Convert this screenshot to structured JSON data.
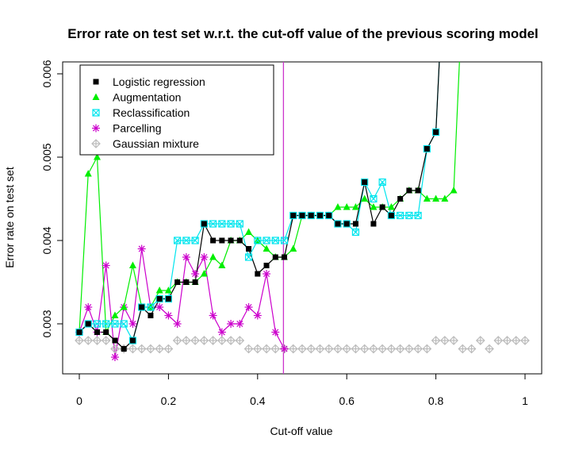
{
  "chart_data": {
    "type": "line",
    "title": "Error rate on test set w.r.t. the cut-off value of the previous scoring model",
    "xlabel": "Cut-off value",
    "ylabel": "Error rate on test set",
    "xlim": [
      0,
      1
    ],
    "ylim": [
      0.00265,
      0.00618
    ],
    "xticks": [
      0,
      0.2,
      0.4,
      0.6,
      0.8,
      1
    ],
    "xtick_labels": [
      "0",
      "0.2",
      "0.4",
      "0.6",
      "0.8",
      "1"
    ],
    "yticks": [
      0.003,
      0.004,
      0.005,
      0.006
    ],
    "ytick_labels": [
      "0.003",
      "0.004",
      "0.005",
      "0.006"
    ],
    "grid": false,
    "legend_position": "top-left",
    "vline": {
      "x": 0.458,
      "color": "#cc33cc"
    },
    "series": [
      {
        "name": "Logistic regression",
        "color": "#000000",
        "marker": "square",
        "x": [
          0,
          0.02,
          0.04,
          0.06,
          0.08,
          0.1,
          0.12,
          0.14,
          0.16,
          0.18,
          0.2,
          0.22,
          0.24,
          0.26,
          0.28,
          0.3,
          0.32,
          0.34,
          0.36,
          0.38,
          0.4,
          0.42,
          0.44,
          0.46,
          0.48,
          0.5,
          0.52,
          0.54,
          0.56,
          0.58,
          0.6,
          0.62,
          0.64,
          0.66,
          0.68,
          0.7,
          0.72,
          0.74,
          0.76,
          0.78,
          0.8,
          0.82
        ],
        "y": [
          0.0029,
          0.003,
          0.0029,
          0.0029,
          0.0028,
          0.0027,
          0.0028,
          0.0032,
          0.0031,
          0.0033,
          0.0033,
          0.0035,
          0.0035,
          0.0035,
          0.0042,
          0.004,
          0.004,
          0.004,
          0.004,
          0.0039,
          0.0036,
          0.0037,
          0.0038,
          0.0038,
          0.0043,
          0.0043,
          0.0043,
          0.0043,
          0.0043,
          0.0042,
          0.0042,
          0.0042,
          0.0047,
          0.0042,
          0.0044,
          0.0043,
          0.0045,
          0.0046,
          0.0046,
          0.0051,
          0.0053,
          0.0075
        ]
      },
      {
        "name": "Augmentation",
        "color": "#00ee00",
        "marker": "triangle",
        "x": [
          0,
          0.02,
          0.04,
          0.06,
          0.08,
          0.1,
          0.12,
          0.14,
          0.16,
          0.18,
          0.2,
          0.22,
          0.24,
          0.26,
          0.28,
          0.3,
          0.32,
          0.34,
          0.36,
          0.38,
          0.4,
          0.42,
          0.44,
          0.46,
          0.48,
          0.5,
          0.52,
          0.54,
          0.56,
          0.58,
          0.6,
          0.62,
          0.64,
          0.66,
          0.68,
          0.7,
          0.72,
          0.74,
          0.76,
          0.78,
          0.8,
          0.82,
          0.84,
          0.86
        ],
        "y": [
          0.0029,
          0.0048,
          0.005,
          0.0029,
          0.0031,
          0.0032,
          0.0037,
          0.0032,
          0.0032,
          0.0034,
          0.0034,
          0.0035,
          0.0035,
          0.0035,
          0.0036,
          0.0038,
          0.0037,
          0.004,
          0.004,
          0.0041,
          0.004,
          0.0039,
          0.0038,
          0.0038,
          0.0039,
          0.0043,
          0.0043,
          0.0043,
          0.0043,
          0.0044,
          0.0044,
          0.0044,
          0.0045,
          0.0044,
          0.0044,
          0.0044,
          0.0045,
          0.0046,
          0.0046,
          0.0045,
          0.0045,
          0.0045,
          0.0046,
          0.007
        ]
      },
      {
        "name": "Reclassification",
        "color": "#00e5ee",
        "marker": "square-x",
        "x": [
          0,
          0.02,
          0.04,
          0.06,
          0.08,
          0.1,
          0.12,
          0.14,
          0.16,
          0.18,
          0.2,
          0.22,
          0.24,
          0.26,
          0.28,
          0.3,
          0.32,
          0.34,
          0.36,
          0.38,
          0.4,
          0.42,
          0.44,
          0.46,
          0.48,
          0.5,
          0.52,
          0.54,
          0.56,
          0.58,
          0.6,
          0.62,
          0.64,
          0.66,
          0.68,
          0.7,
          0.72,
          0.74,
          0.76,
          0.78,
          0.8,
          0.82
        ],
        "y": [
          0.0029,
          0.003,
          0.003,
          0.003,
          0.003,
          0.003,
          0.0028,
          0.0032,
          0.0032,
          0.0033,
          0.0033,
          0.004,
          0.004,
          0.004,
          0.0042,
          0.0042,
          0.0042,
          0.0042,
          0.0042,
          0.0038,
          0.004,
          0.004,
          0.004,
          0.004,
          0.0043,
          0.0043,
          0.0043,
          0.0043,
          0.0043,
          0.0042,
          0.0042,
          0.0041,
          0.0047,
          0.0045,
          0.0047,
          0.0043,
          0.0043,
          0.0043,
          0.0043,
          0.0051,
          0.0053,
          0.0075
        ]
      },
      {
        "name": "Parcelling",
        "color": "#cc00cc",
        "marker": "asterisk",
        "x": [
          0,
          0.02,
          0.04,
          0.06,
          0.08,
          0.1,
          0.12,
          0.14,
          0.16,
          0.18,
          0.2,
          0.22,
          0.24,
          0.26,
          0.28,
          0.3,
          0.32,
          0.34,
          0.36,
          0.38,
          0.4,
          0.42,
          0.44,
          0.46
        ],
        "y": [
          0.0029,
          0.0032,
          0.0029,
          0.0037,
          0.0026,
          0.0032,
          0.003,
          0.0039,
          0.0032,
          0.0032,
          0.0031,
          0.003,
          0.0038,
          0.0036,
          0.0038,
          0.0031,
          0.0029,
          0.003,
          0.003,
          0.0032,
          0.0031,
          0.0036,
          0.0029,
          0.0027
        ]
      },
      {
        "name": "Gaussian mixture",
        "color": "#bbbbbb",
        "marker": "diamond-plus",
        "x": [
          0,
          0.02,
          0.04,
          0.06,
          0.08,
          0.1,
          0.12,
          0.14,
          0.16,
          0.18,
          0.2,
          0.22,
          0.24,
          0.26,
          0.28,
          0.3,
          0.32,
          0.34,
          0.36,
          0.38,
          0.4,
          0.42,
          0.44,
          0.46,
          0.48,
          0.5,
          0.52,
          0.54,
          0.56,
          0.58,
          0.6,
          0.62,
          0.64,
          0.66,
          0.68,
          0.7,
          0.72,
          0.74,
          0.76,
          0.78,
          0.8,
          0.82,
          0.84,
          0.86,
          0.88,
          0.9,
          0.92,
          0.94,
          0.96,
          0.98,
          1.0
        ],
        "y": [
          0.0028,
          0.0028,
          0.0028,
          0.0028,
          0.0027,
          0.0027,
          0.0027,
          0.0027,
          0.0027,
          0.0027,
          0.0027,
          0.0028,
          0.0028,
          0.0028,
          0.0028,
          0.0028,
          0.0028,
          0.0028,
          0.0028,
          0.0027,
          0.0027,
          0.0027,
          0.0027,
          0.0027,
          0.0027,
          0.0027,
          0.0027,
          0.0027,
          0.0027,
          0.0027,
          0.0027,
          0.0027,
          0.0027,
          0.0027,
          0.0027,
          0.0027,
          0.0027,
          0.0027,
          0.0027,
          0.0027,
          0.0028,
          0.0028,
          0.0028,
          0.0027,
          0.0027,
          0.0028,
          0.0027,
          0.0028,
          0.0028,
          0.0028,
          0.0028
        ]
      }
    ]
  }
}
